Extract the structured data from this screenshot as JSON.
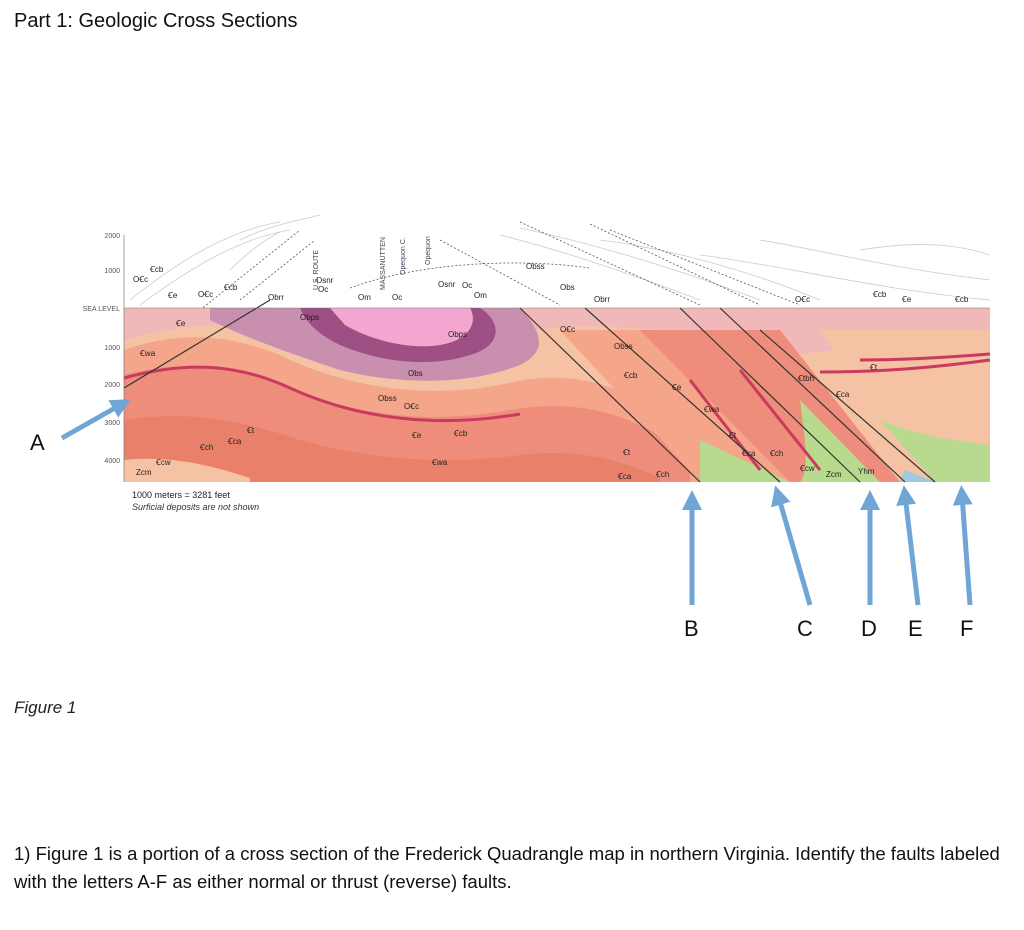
{
  "document": {
    "title": "Part 1: Geologic Cross Sections",
    "caption": "Figure 1",
    "question": "1) Figure 1 is a portion of a cross section of the Frederick Quadrangle map in northern Virginia. Identify the faults labeled with the letters A-F as either normal or thrust (reverse) faults."
  },
  "cross_section": {
    "elevation_labels": [
      "2000",
      "1000",
      "SEA LEVEL",
      "1000",
      "2000",
      "3000",
      "4000"
    ],
    "scale_text": "1000 meters = 3281 feet",
    "note_text": "Surficial deposits are not shown",
    "place_labels": [
      "U.S. ROUTE",
      "MASSANUTTEN",
      "Opequon C.",
      "Opequon"
    ],
    "unit_labels": [
      "Ꞓcb",
      "OꞒc",
      "Ꞓe",
      "OꞒc",
      "Ꞓcb",
      "Obrr",
      "Osnr",
      "Oc",
      "Osnr",
      "Om",
      "Oc",
      "Oc",
      "Om",
      "Obss",
      "Obs",
      "Obrr",
      "OꞒc",
      "Ꞓcb",
      "Ꞓe",
      "Ꞓcb",
      "Ꞓe",
      "Obps",
      "Obps",
      "OꞒc",
      "Obss",
      "Ꞓwa",
      "Obs",
      "Obss",
      "OꞒc",
      "Ꞓcb",
      "Ꞓe",
      "Ꞓe",
      "Ꞓcb",
      "Ꞓch",
      "Ꞓca",
      "Ꞓt",
      "Ꞓcw",
      "Zcm",
      "Ꞓwa",
      "Ꞓwa",
      "Ꞓt",
      "Ꞓca",
      "Ꞓch",
      "Ꞓt",
      "Ꞓca",
      "Ꞓch",
      "Ꞓtbh",
      "Ꞓt",
      "Ꞓca",
      "Ꞓcw",
      "Zcm",
      "Yhm"
    ],
    "unit_colors": {
      "upper": "#f1b8ba",
      "purple": "#c98fae",
      "darkpurple": "#9e4f83",
      "pink_core": "#f3a6cf",
      "orange": "#f4a58a",
      "salmon": "#ee8d7c",
      "deep_orange": "#e8806a",
      "tan": "#f6c2a4",
      "green": "#b7da8e",
      "blue": "#9fc9de",
      "red": "#c83a5e"
    }
  },
  "fault_labels": [
    "A",
    "B",
    "C",
    "D",
    "E",
    "F"
  ],
  "arrow_color": "#6fa6d6"
}
